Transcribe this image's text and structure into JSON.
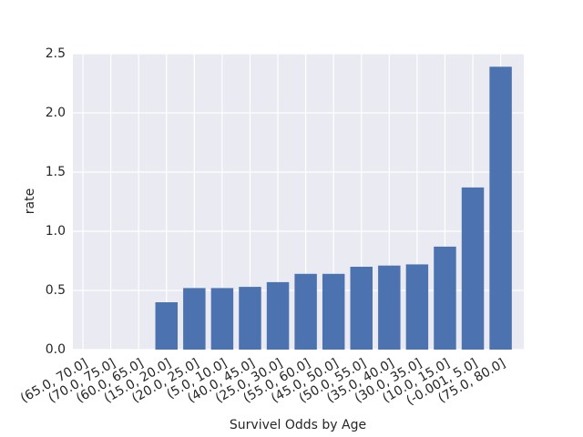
{
  "chart_data": {
    "type": "bar",
    "categories": [
      "(65.0, 70.0]",
      "(70.0, 75.0]",
      "(60.0, 65.0]",
      "(15.0, 20.0]",
      "(20.0, 25.0]",
      "(5.0, 10.0]",
      "(40.0, 45.0]",
      "(25.0, 30.0]",
      "(55.0, 60.0]",
      "(45.0, 50.0]",
      "(50.0, 55.0]",
      "(35.0, 40.0]",
      "(30.0, 35.0]",
      "(10.0, 15.0]",
      "(-0.001, 5.0]",
      "(75.0, 80.0]"
    ],
    "values": [
      0,
      0,
      0,
      0.4,
      0.52,
      0.52,
      0.53,
      0.57,
      0.64,
      0.64,
      0.7,
      0.71,
      0.72,
      0.87,
      1.37,
      2.39
    ],
    "color": "#4c72b0",
    "x_label": "Survivel Odds by Age",
    "y_label": "rate",
    "ylim": [
      0,
      2.5
    ],
    "yticks": [
      {
        "value": 0,
        "label": "0.0"
      },
      0.5,
      {
        "value": 1,
        "label": "1.0"
      },
      1.5,
      {
        "value": 2,
        "label": "2.0"
      },
      2.5
    ],
    "grid": true
  }
}
